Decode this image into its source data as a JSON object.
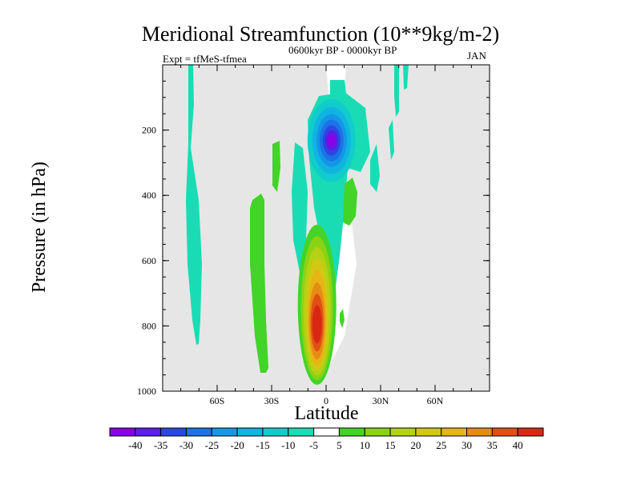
{
  "header": {
    "title": "Meridional Streamfunction (10**9kg/m-2)",
    "experiment": "Expt = tfMeS-tfmea",
    "period": "0600kyr BP - 0000kyr BP",
    "month": "JAN"
  },
  "chart_data": {
    "type": "heatmap",
    "title": "Meridional Streamfunction (10**9kg/m-2)",
    "xlabel": "Latitude",
    "ylabel": "Pressure (in hPa)",
    "xlim": [
      -90,
      90
    ],
    "ylim": [
      1000,
      0
    ],
    "x_ticks": [
      {
        "value": -60,
        "label": "60S"
      },
      {
        "value": -30,
        "label": "30S"
      },
      {
        "value": 0,
        "label": "0"
      },
      {
        "value": 30,
        "label": "30N"
      },
      {
        "value": 60,
        "label": "60N"
      }
    ],
    "y_ticks": [
      {
        "value": 200,
        "label": "200"
      },
      {
        "value": 400,
        "label": "400"
      },
      {
        "value": 600,
        "label": "600"
      },
      {
        "value": 800,
        "label": "800"
      },
      {
        "value": 1000,
        "label": "1000"
      }
    ],
    "background_color": "#e6e6e6",
    "colorbar": {
      "levels": [
        "-40",
        "-35",
        "-30",
        "-25",
        "-20",
        "-15",
        "-10",
        "-5",
        "5",
        "10",
        "15",
        "20",
        "25",
        "30",
        "35",
        "40"
      ],
      "colors": [
        "#8a00e6",
        "#5a1ee6",
        "#2a48e0",
        "#1c72e6",
        "#1496e6",
        "#10b4e0",
        "#12cccc",
        "#1adcb4",
        "#ffffff",
        "#42d428",
        "#8cd214",
        "#b4d214",
        "#d2c814",
        "#e6b414",
        "#e68c14",
        "#e05014",
        "#d82814"
      ]
    },
    "features": [
      {
        "name": "positive-cell-core",
        "lat": -5,
        "p": 790,
        "value": 40
      },
      {
        "name": "negative-cell-core",
        "lat": 3,
        "p": 235,
        "value": -40
      },
      {
        "name": "positive-band",
        "lat": -35,
        "p": 700,
        "value": 10
      },
      {
        "name": "positive-band",
        "lat": -25,
        "p": 250,
        "value": 10
      },
      {
        "name": "positive-patch",
        "lat": 15,
        "p": 380,
        "value": 10
      },
      {
        "name": "negative-band",
        "lat": -75,
        "p": 400,
        "value": -5
      },
      {
        "name": "negative-band",
        "lat": -15,
        "p": 300,
        "value": -5
      },
      {
        "name": "negative-band",
        "lat": 35,
        "p": 150,
        "value": -5
      }
    ]
  }
}
